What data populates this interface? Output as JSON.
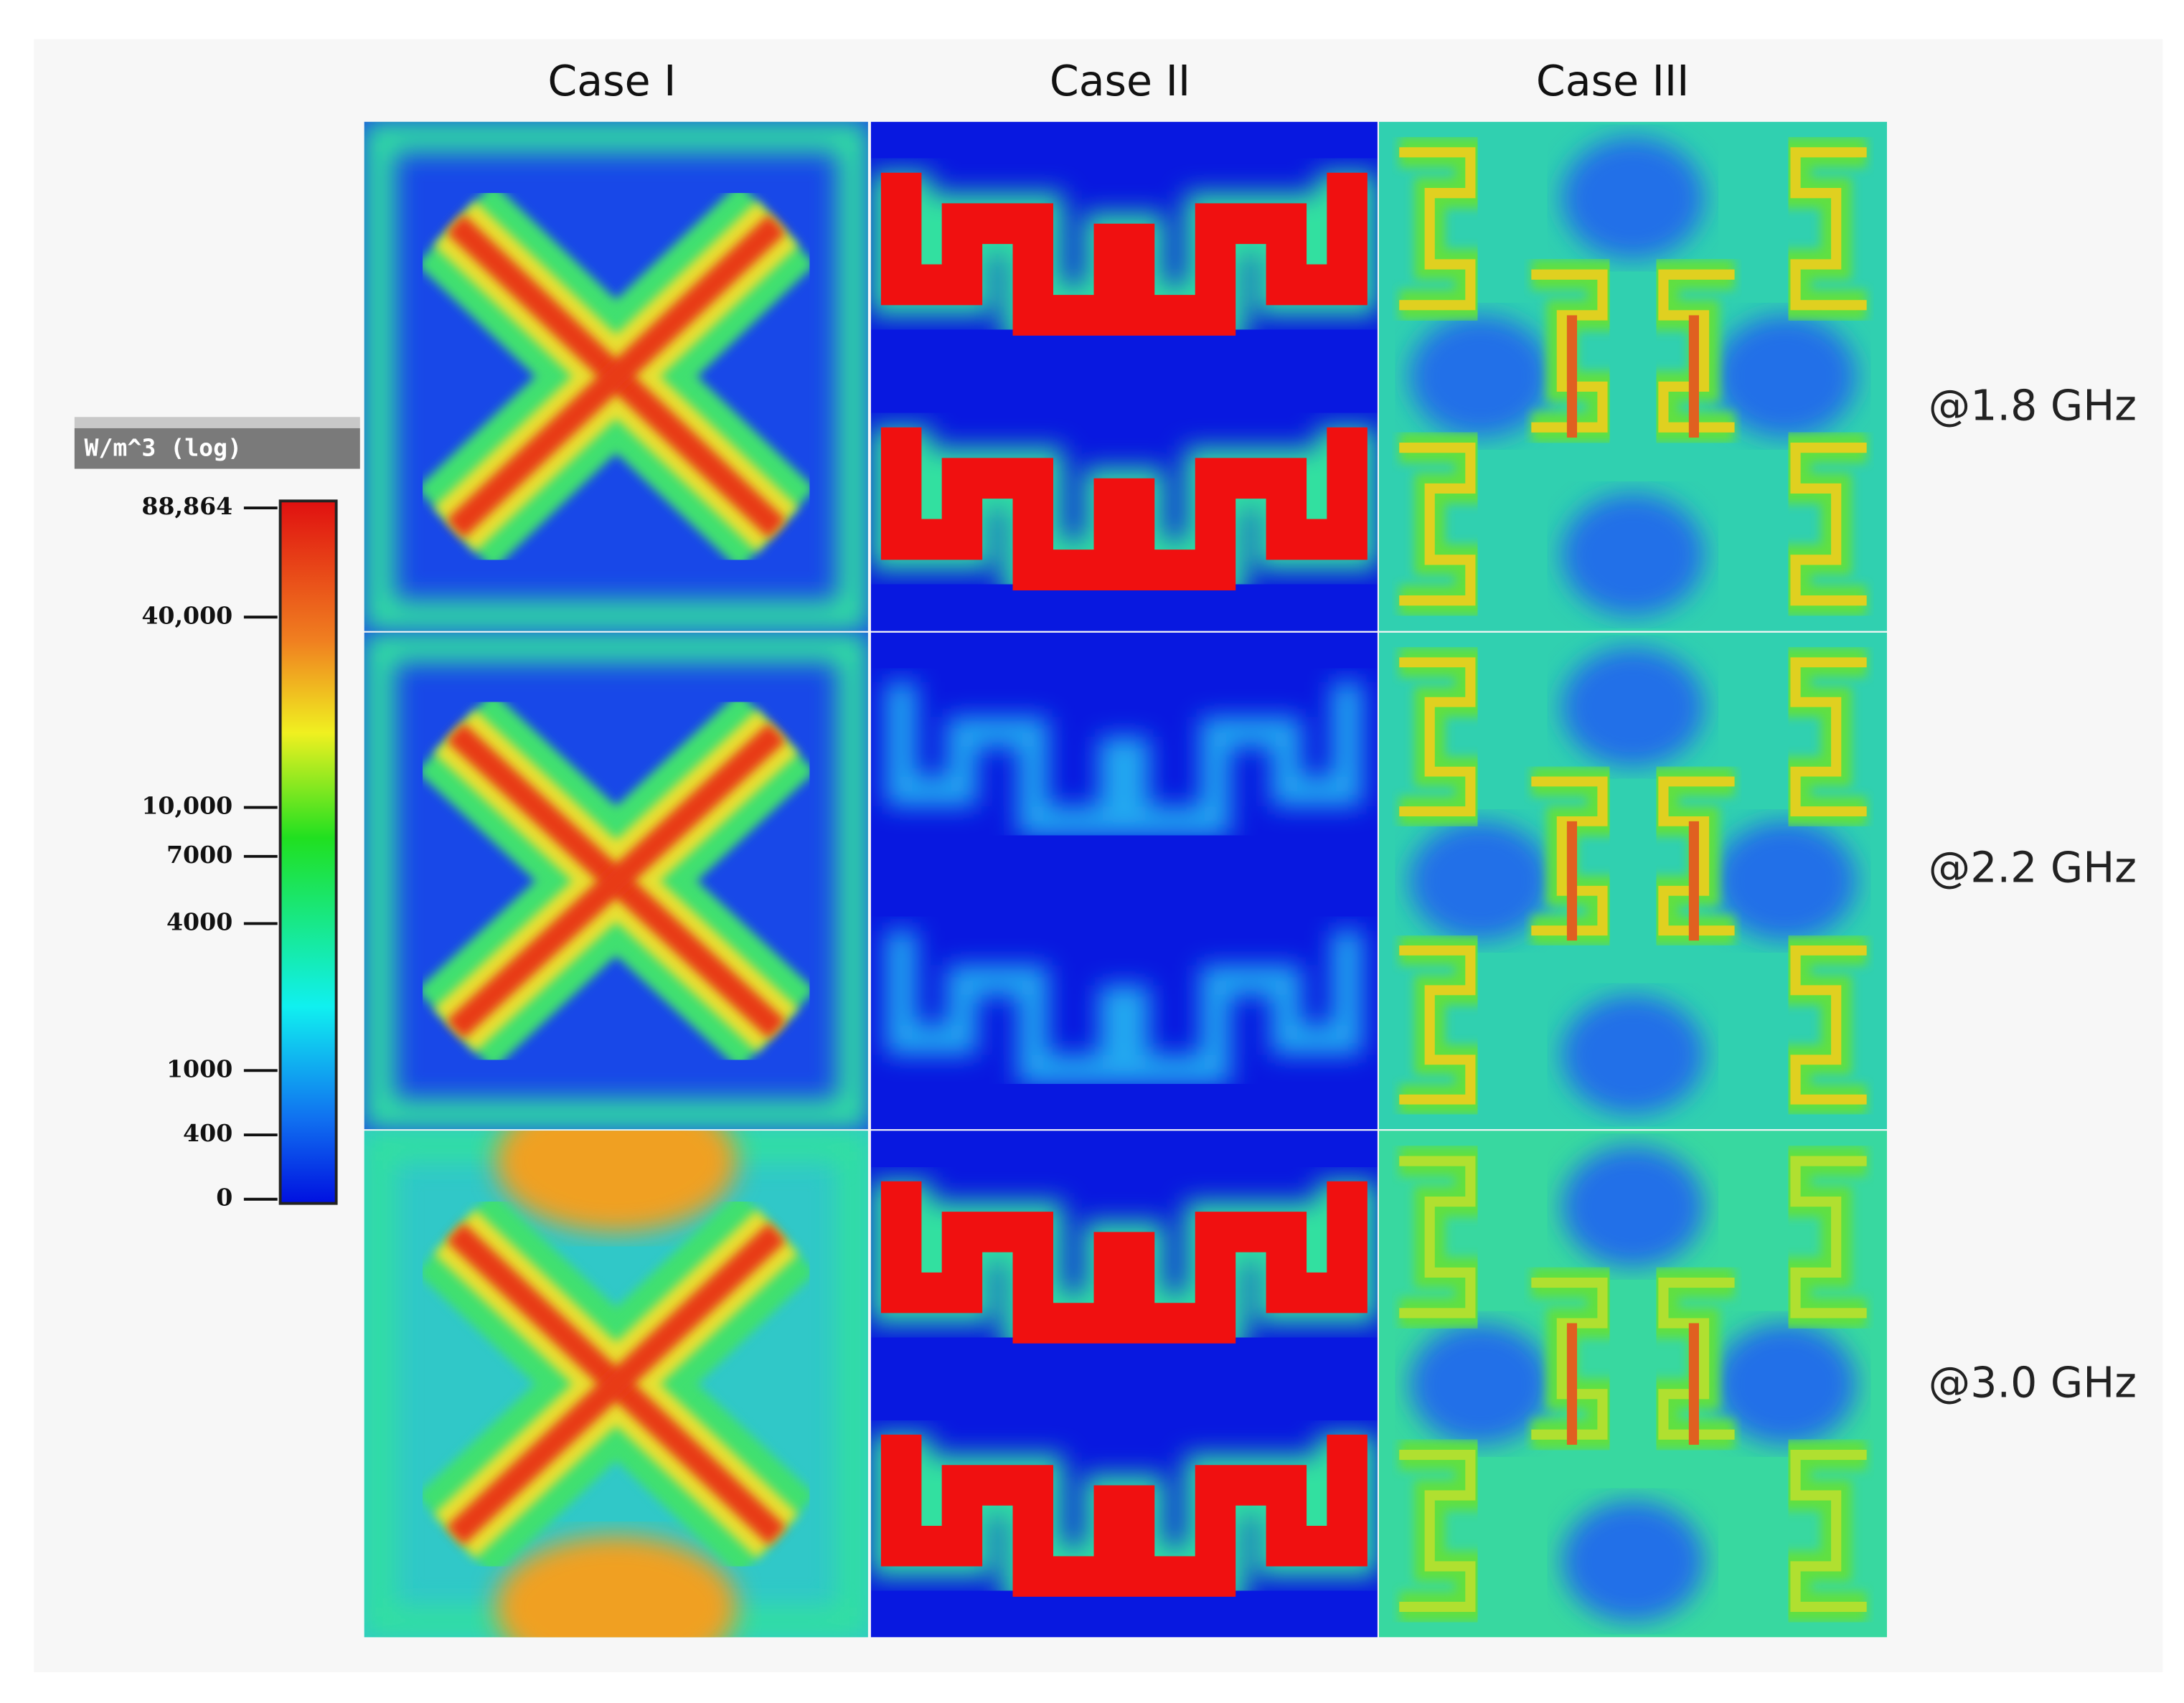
{
  "columns": [
    "Case I",
    "Case II",
    "Case III"
  ],
  "rows": [
    "@1.8 GHz",
    "@2.2 GHz",
    "@3.0 GHz"
  ],
  "colorbar": {
    "title": "W/m^3 (log)",
    "ticks": [
      "88,864",
      "40,000",
      "10,000",
      "7000",
      "4000",
      "1000",
      "400",
      "0"
    ]
  }
}
